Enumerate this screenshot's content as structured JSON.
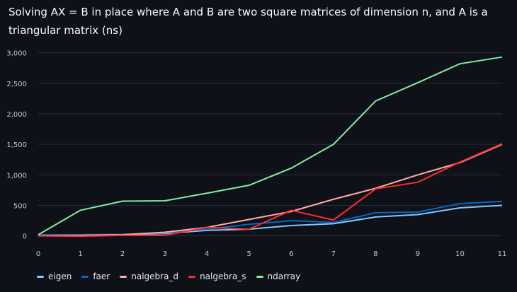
{
  "chart_data": {
    "type": "line",
    "title": "Solving AX = B in place where A and B are two square matrices of dimension n, and A is a triangular matrix (ns)",
    "xlabel": "",
    "ylabel": "",
    "x": [
      0,
      1,
      2,
      3,
      4,
      5,
      6,
      7,
      8,
      9,
      10,
      11
    ],
    "xlim": [
      0,
      11
    ],
    "ylim": [
      -50,
      3100
    ],
    "yticks": [
      0,
      500,
      1000,
      1500,
      2000,
      2500,
      3000
    ],
    "ytick_labels": [
      "0",
      "500",
      "1,000",
      "1,500",
      "2,000",
      "2,500",
      "3,000"
    ],
    "xtick_labels": [
      "0",
      "1",
      "2",
      "3",
      "4",
      "5",
      "6",
      "7",
      "8",
      "9",
      "10",
      "11"
    ],
    "grid": "horizontal",
    "legend": "bottom-left",
    "series": [
      {
        "name": "eigen",
        "color": "#83c9ff",
        "values": [
          15,
          15,
          20,
          40,
          90,
          110,
          170,
          200,
          310,
          350,
          460,
          500
        ]
      },
      {
        "name": "faer",
        "color": "#0068c9",
        "values": [
          20,
          20,
          25,
          50,
          110,
          190,
          250,
          220,
          380,
          390,
          530,
          565
        ]
      },
      {
        "name": "nalgebra_d",
        "color": "#ffabab",
        "values": [
          5,
          10,
          20,
          60,
          140,
          270,
          400,
          600,
          780,
          1000,
          1200,
          1500
        ]
      },
      {
        "name": "nalgebra_s",
        "color": "#ff2b2b",
        "values": [
          0,
          -5,
          10,
          10,
          140,
          110,
          420,
          260,
          770,
          880,
          1210,
          1510
        ]
      },
      {
        "name": "ndarray",
        "color": "#7defa1",
        "values": [
          20,
          420,
          570,
          575,
          700,
          830,
          1110,
          1500,
          2210,
          2510,
          2820,
          2930
        ]
      }
    ]
  }
}
